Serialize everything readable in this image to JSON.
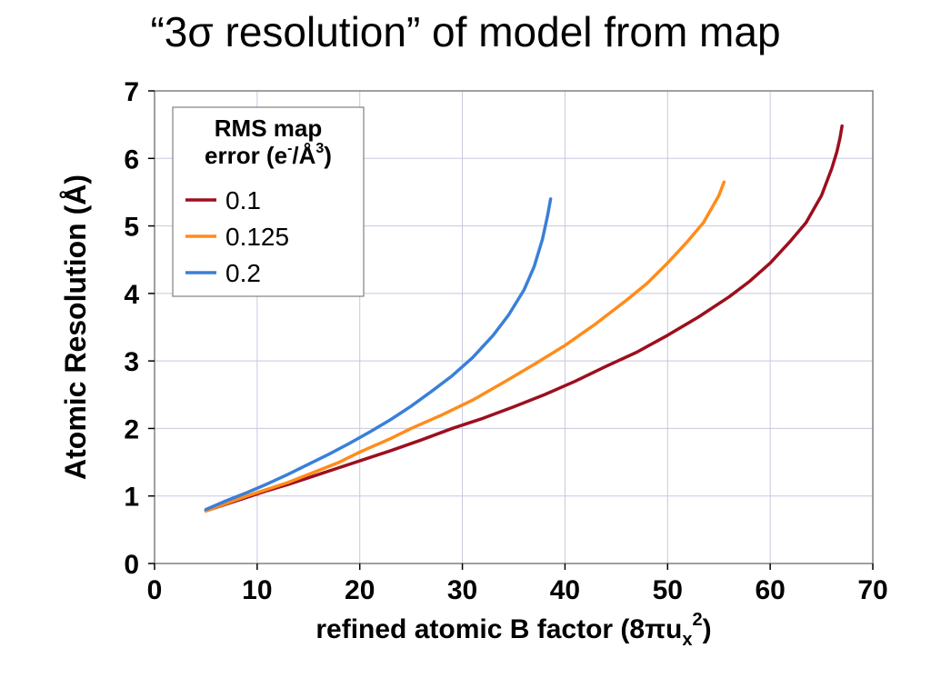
{
  "title": "“3σ resolution” of model from map",
  "chart": {
    "type": "line",
    "background_color": "#ffffff",
    "plot_border_color": "#808080",
    "grid_color": "#c8c8e0",
    "xlabel_prefix": "refined atomic B factor (8πu",
    "xlabel_sub": "x",
    "xlabel_sup": "2",
    "xlabel_suffix": ")",
    "ylabel": "Atomic Resolution (Å)",
    "xlim": [
      0,
      70
    ],
    "ylim": [
      0,
      7
    ],
    "xticks": [
      0,
      10,
      20,
      30,
      40,
      50,
      60,
      70
    ],
    "yticks": [
      0,
      1,
      2,
      3,
      4,
      5,
      6,
      7
    ],
    "tick_len": 7,
    "line_width": 3.5,
    "legend": {
      "title_line1": "RMS map",
      "title_line2_a": "error (e",
      "title_line2_sup1": "-",
      "title_line2_b": "/Å",
      "title_line2_sup2": "3",
      "title_line2_c": ")",
      "border_color": "#808080",
      "swatch_len": 34,
      "swatch_width": 3.5
    },
    "series": [
      {
        "label": "0.1",
        "color": "#9c0f1e",
        "points": [
          [
            5,
            0.78
          ],
          [
            7,
            0.88
          ],
          [
            9,
            0.98
          ],
          [
            11,
            1.08
          ],
          [
            13,
            1.17
          ],
          [
            15,
            1.27
          ],
          [
            18,
            1.42
          ],
          [
            20,
            1.52
          ],
          [
            23,
            1.67
          ],
          [
            26,
            1.83
          ],
          [
            29,
            2.0
          ],
          [
            32,
            2.15
          ],
          [
            35,
            2.32
          ],
          [
            38,
            2.5
          ],
          [
            41,
            2.7
          ],
          [
            44,
            2.92
          ],
          [
            47,
            3.13
          ],
          [
            50,
            3.38
          ],
          [
            53,
            3.65
          ],
          [
            56,
            3.95
          ],
          [
            58,
            4.18
          ],
          [
            60,
            4.45
          ],
          [
            62,
            4.78
          ],
          [
            63.5,
            5.05
          ],
          [
            65,
            5.45
          ],
          [
            66,
            5.85
          ],
          [
            66.5,
            6.1
          ],
          [
            66.8,
            6.3
          ],
          [
            67,
            6.48
          ]
        ]
      },
      {
        "label": "0.125",
        "color": "#ff8c1a",
        "points": [
          [
            5,
            0.78
          ],
          [
            7,
            0.89
          ],
          [
            9,
            1.0
          ],
          [
            11,
            1.1
          ],
          [
            13,
            1.2
          ],
          [
            15,
            1.32
          ],
          [
            18,
            1.5
          ],
          [
            20,
            1.65
          ],
          [
            23,
            1.85
          ],
          [
            25,
            2.0
          ],
          [
            28,
            2.2
          ],
          [
            31,
            2.42
          ],
          [
            34,
            2.68
          ],
          [
            37,
            2.95
          ],
          [
            40,
            3.23
          ],
          [
            43,
            3.55
          ],
          [
            46,
            3.9
          ],
          [
            48,
            4.15
          ],
          [
            50,
            4.45
          ],
          [
            52,
            4.78
          ],
          [
            53.5,
            5.05
          ],
          [
            55,
            5.45
          ],
          [
            55.5,
            5.65
          ]
        ]
      },
      {
        "label": "0.2",
        "color": "#3a7fd9",
        "points": [
          [
            5,
            0.8
          ],
          [
            7,
            0.93
          ],
          [
            9,
            1.05
          ],
          [
            11,
            1.18
          ],
          [
            13,
            1.32
          ],
          [
            15,
            1.47
          ],
          [
            17,
            1.62
          ],
          [
            19,
            1.78
          ],
          [
            21,
            1.95
          ],
          [
            23,
            2.13
          ],
          [
            25,
            2.33
          ],
          [
            27,
            2.55
          ],
          [
            29,
            2.78
          ],
          [
            31,
            3.05
          ],
          [
            33,
            3.38
          ],
          [
            34.5,
            3.68
          ],
          [
            36,
            4.05
          ],
          [
            37,
            4.4
          ],
          [
            37.8,
            4.8
          ],
          [
            38.3,
            5.15
          ],
          [
            38.6,
            5.4
          ]
        ]
      }
    ]
  }
}
